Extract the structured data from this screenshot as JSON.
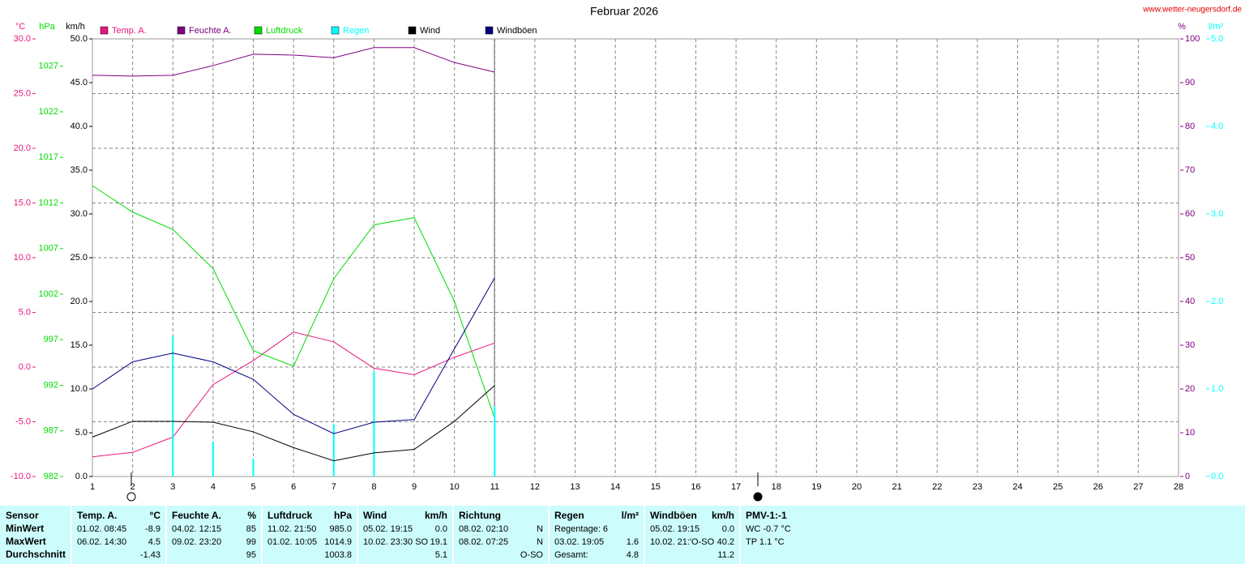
{
  "chart_data": {
    "type": "line",
    "title": "Februar 2026",
    "source": "www.wetter-neugersdorf.de",
    "x": [
      1,
      2,
      3,
      4,
      5,
      6,
      7,
      8,
      9,
      10,
      11
    ],
    "xlim": [
      1,
      28
    ],
    "xticks": [
      1,
      2,
      3,
      4,
      5,
      6,
      7,
      8,
      9,
      10,
      11,
      12,
      13,
      14,
      15,
      16,
      17,
      18,
      19,
      20,
      21,
      22,
      23,
      24,
      25,
      26,
      27,
      28
    ],
    "grid": true,
    "ylabel": "°C",
    "ylim": [
      -10,
      30
    ],
    "yticks": [
      {
        "value": -10,
        "label": "-10.0"
      },
      {
        "value": -5,
        "label": "-5.0"
      },
      {
        "value": 0,
        "label": "0.0"
      },
      {
        "value": 5,
        "label": "5.0"
      },
      {
        "value": 10,
        "label": "10.0"
      },
      {
        "value": 15,
        "label": "15.0"
      },
      {
        "value": 20,
        "label": "20.0"
      },
      {
        "value": 25,
        "label": "25.0"
      },
      {
        "value": 30,
        "label": "30.0"
      }
    ],
    "y2label": "hPa",
    "y2lim": [
      982,
      1030
    ],
    "y2ticks": [
      982,
      987,
      992,
      997,
      1002,
      1007,
      1012,
      1017,
      1022,
      1027
    ],
    "y3label": "km/h",
    "y3lim": [
      0,
      50
    ],
    "y3ticks": [
      {
        "value": 0,
        "label": "0.0"
      },
      {
        "value": 5,
        "label": "5.0"
      },
      {
        "value": 10,
        "label": "10.0"
      },
      {
        "value": 15,
        "label": "15.0"
      },
      {
        "value": 20,
        "label": "20.0"
      },
      {
        "value": 25,
        "label": "25.0"
      },
      {
        "value": 30,
        "label": "30.0"
      },
      {
        "value": 35,
        "label": "35.0"
      },
      {
        "value": 40,
        "label": "40.0"
      },
      {
        "value": 45,
        "label": "45.0"
      },
      {
        "value": 50,
        "label": "50.0"
      }
    ],
    "y4label": "%",
    "y4lim": [
      0,
      100
    ],
    "y4ticks": [
      0,
      10,
      20,
      30,
      40,
      50,
      60,
      70,
      80,
      90,
      100
    ],
    "y5label": "l/m²",
    "y5lim": [
      0,
      5
    ],
    "y5ticks": [
      {
        "value": 0,
        "label": "0.0"
      },
      {
        "value": 1,
        "label": "1.0"
      },
      {
        "value": 2,
        "label": "2.0"
      },
      {
        "value": 3,
        "label": "3.0"
      },
      {
        "value": 4,
        "label": "4.0"
      },
      {
        "value": 5,
        "label": "5.0"
      }
    ],
    "series": [
      {
        "name": "Temp. A.",
        "color": "#e8177d",
        "axis": "y",
        "type": "line",
        "values": [
          -8.2,
          -7.8,
          -6.4,
          -1.6,
          0.6,
          3.2,
          2.3,
          -0.1,
          -0.7,
          0.9,
          2.2
        ]
      },
      {
        "name": "Feuchte A.",
        "color": "#800080",
        "axis": "y4",
        "type": "line",
        "values": [
          91.7,
          91.5,
          91.7,
          93.9,
          96.5,
          96.3,
          95.7,
          98.0,
          98.0,
          94.6,
          92.4
        ]
      },
      {
        "name": "Luftdruck",
        "color": "#00dd00",
        "axis": "y2",
        "type": "line",
        "values": [
          1013.9,
          1011.0,
          1009.1,
          1004.8,
          995.8,
          994.1,
          1003.7,
          1009.6,
          1010.4,
          1001.2,
          988.4
        ]
      },
      {
        "name": "Regen",
        "color": "#00ffff",
        "axis": "y5",
        "type": "bar",
        "values": [
          0,
          0,
          1.6,
          0.4,
          0.2,
          0,
          0.6,
          1.2,
          0,
          0,
          0.8
        ]
      },
      {
        "name": "Wind",
        "color": "#000000",
        "axis": "y3",
        "type": "line",
        "values": [
          4.5,
          6.3,
          6.3,
          6.2,
          5.1,
          3.3,
          1.8,
          2.7,
          3.1,
          6.3,
          10.4
        ]
      },
      {
        "name": "Windböen",
        "color": "#000080",
        "axis": "y3",
        "type": "line",
        "values": [
          10.0,
          13.1,
          14.1,
          13.1,
          11.1,
          7.1,
          4.9,
          6.2,
          6.5,
          14.6,
          22.7
        ]
      }
    ]
  },
  "table": {
    "blocks": [
      {
        "header": {
          "left": "Sensor"
        },
        "rows": [
          {
            "left": "MinWert"
          },
          {
            "left": "MaxWert"
          },
          {
            "left": "Durchschnitt"
          }
        ]
      },
      {
        "header": {
          "left": "Temp. A.",
          "right": "°C"
        },
        "rows": [
          {
            "left": "01.02.  08:45",
            "right": "-8.9"
          },
          {
            "left": "06.02.  14:30",
            "right": "4.5"
          },
          {
            "right": "-1.43"
          }
        ]
      },
      {
        "header": {
          "left": "Feuchte A.",
          "right": "%"
        },
        "rows": [
          {
            "left": "04.02.  12:15",
            "right": "85"
          },
          {
            "left": "09.02.  23:20",
            "right": "99"
          },
          {
            "right": "95"
          }
        ]
      },
      {
        "header": {
          "left": "Luftdruck",
          "right": "hPa"
        },
        "rows": [
          {
            "left": "11.02.  21:50",
            "right": "985.0"
          },
          {
            "left": "01.02.  10:05",
            "right": "1014.9"
          },
          {
            "right": "1003.8"
          }
        ]
      },
      {
        "header": {
          "left": "Wind",
          "right": "km/h"
        },
        "rows": [
          {
            "left": "05.02.  19:15",
            "right": "0.0"
          },
          {
            "left": "10.02.  23:30 SO",
            "right": "19.1"
          },
          {
            "right": "5.1"
          }
        ]
      },
      {
        "header": {
          "left": "Richtung"
        },
        "rows": [
          {
            "left": "08.02.  02:10",
            "right": "N"
          },
          {
            "left": "08.02.  07:25",
            "right": "N"
          },
          {
            "right": "O-SO"
          }
        ]
      },
      {
        "header": {
          "left": "Regen",
          "right": "l/m²"
        },
        "rows": [
          {
            "left": "Regentage: 6"
          },
          {
            "left": "03.02.  19:05",
            "right": "1.6"
          },
          {
            "left": "Gesamt:",
            "right": "4.8"
          }
        ]
      },
      {
        "header": {
          "left": "Windböen",
          "right": "km/h"
        },
        "rows": [
          {
            "left": "05.02.  19:15",
            "right": "0.0"
          },
          {
            "left": "10.02.  21:'O-SO",
            "right": "40.2"
          },
          {
            "right": "11.2"
          }
        ]
      },
      {
        "header": {
          "left": "PMV-1:-1"
        },
        "rows": [
          {
            "left": "WC -0.7 °C"
          },
          {
            "left": "TP 1.1 °C"
          }
        ]
      }
    ]
  }
}
